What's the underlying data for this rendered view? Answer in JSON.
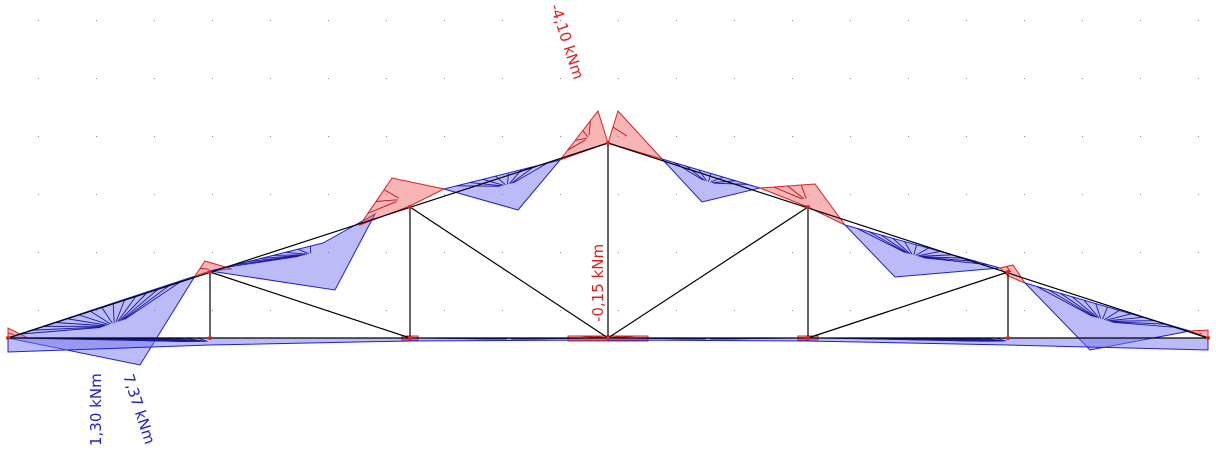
{
  "diagram": {
    "type": "truss bending moment diagram",
    "colors": {
      "negative": "#e02020",
      "positive": "#2020d0",
      "member": "#000000",
      "grid": "#8a8a8a"
    },
    "labels": {
      "top_moment": "-4,10 kNm",
      "mid_moment": "-0,15 kNm",
      "left_moment_a": "1,30 kNm",
      "left_moment_b": "7,37 kNm"
    }
  }
}
